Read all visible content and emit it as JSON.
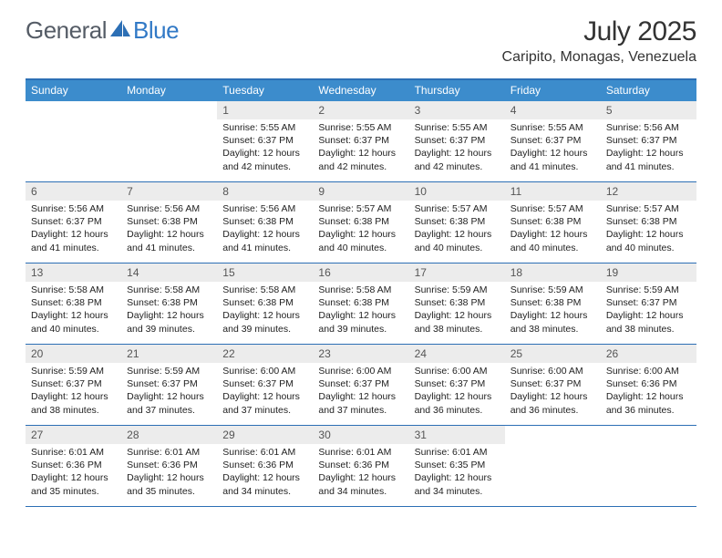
{
  "brand": {
    "text_general": "General",
    "text_blue": "Blue",
    "general_color": "#555c66",
    "blue_color": "#3179c6",
    "icon_color": "#2c6fb5"
  },
  "header": {
    "title": "July 2025",
    "location": "Caripito, Monagas, Venezuela"
  },
  "colors": {
    "header_bar": "#3c8ccc",
    "rule": "#2c6fb5",
    "daynum_bg": "#ececec",
    "text": "#222222",
    "background": "#ffffff"
  },
  "weekdays": [
    "Sunday",
    "Monday",
    "Tuesday",
    "Wednesday",
    "Thursday",
    "Friday",
    "Saturday"
  ],
  "weeks": [
    [
      {
        "n": "",
        "sr": "",
        "ss": "",
        "dl1": "",
        "dl2": ""
      },
      {
        "n": "",
        "sr": "",
        "ss": "",
        "dl1": "",
        "dl2": ""
      },
      {
        "n": "1",
        "sr": "Sunrise: 5:55 AM",
        "ss": "Sunset: 6:37 PM",
        "dl1": "Daylight: 12 hours",
        "dl2": "and 42 minutes."
      },
      {
        "n": "2",
        "sr": "Sunrise: 5:55 AM",
        "ss": "Sunset: 6:37 PM",
        "dl1": "Daylight: 12 hours",
        "dl2": "and 42 minutes."
      },
      {
        "n": "3",
        "sr": "Sunrise: 5:55 AM",
        "ss": "Sunset: 6:37 PM",
        "dl1": "Daylight: 12 hours",
        "dl2": "and 42 minutes."
      },
      {
        "n": "4",
        "sr": "Sunrise: 5:55 AM",
        "ss": "Sunset: 6:37 PM",
        "dl1": "Daylight: 12 hours",
        "dl2": "and 41 minutes."
      },
      {
        "n": "5",
        "sr": "Sunrise: 5:56 AM",
        "ss": "Sunset: 6:37 PM",
        "dl1": "Daylight: 12 hours",
        "dl2": "and 41 minutes."
      }
    ],
    [
      {
        "n": "6",
        "sr": "Sunrise: 5:56 AM",
        "ss": "Sunset: 6:37 PM",
        "dl1": "Daylight: 12 hours",
        "dl2": "and 41 minutes."
      },
      {
        "n": "7",
        "sr": "Sunrise: 5:56 AM",
        "ss": "Sunset: 6:38 PM",
        "dl1": "Daylight: 12 hours",
        "dl2": "and 41 minutes."
      },
      {
        "n": "8",
        "sr": "Sunrise: 5:56 AM",
        "ss": "Sunset: 6:38 PM",
        "dl1": "Daylight: 12 hours",
        "dl2": "and 41 minutes."
      },
      {
        "n": "9",
        "sr": "Sunrise: 5:57 AM",
        "ss": "Sunset: 6:38 PM",
        "dl1": "Daylight: 12 hours",
        "dl2": "and 40 minutes."
      },
      {
        "n": "10",
        "sr": "Sunrise: 5:57 AM",
        "ss": "Sunset: 6:38 PM",
        "dl1": "Daylight: 12 hours",
        "dl2": "and 40 minutes."
      },
      {
        "n": "11",
        "sr": "Sunrise: 5:57 AM",
        "ss": "Sunset: 6:38 PM",
        "dl1": "Daylight: 12 hours",
        "dl2": "and 40 minutes."
      },
      {
        "n": "12",
        "sr": "Sunrise: 5:57 AM",
        "ss": "Sunset: 6:38 PM",
        "dl1": "Daylight: 12 hours",
        "dl2": "and 40 minutes."
      }
    ],
    [
      {
        "n": "13",
        "sr": "Sunrise: 5:58 AM",
        "ss": "Sunset: 6:38 PM",
        "dl1": "Daylight: 12 hours",
        "dl2": "and 40 minutes."
      },
      {
        "n": "14",
        "sr": "Sunrise: 5:58 AM",
        "ss": "Sunset: 6:38 PM",
        "dl1": "Daylight: 12 hours",
        "dl2": "and 39 minutes."
      },
      {
        "n": "15",
        "sr": "Sunrise: 5:58 AM",
        "ss": "Sunset: 6:38 PM",
        "dl1": "Daylight: 12 hours",
        "dl2": "and 39 minutes."
      },
      {
        "n": "16",
        "sr": "Sunrise: 5:58 AM",
        "ss": "Sunset: 6:38 PM",
        "dl1": "Daylight: 12 hours",
        "dl2": "and 39 minutes."
      },
      {
        "n": "17",
        "sr": "Sunrise: 5:59 AM",
        "ss": "Sunset: 6:38 PM",
        "dl1": "Daylight: 12 hours",
        "dl2": "and 38 minutes."
      },
      {
        "n": "18",
        "sr": "Sunrise: 5:59 AM",
        "ss": "Sunset: 6:38 PM",
        "dl1": "Daylight: 12 hours",
        "dl2": "and 38 minutes."
      },
      {
        "n": "19",
        "sr": "Sunrise: 5:59 AM",
        "ss": "Sunset: 6:37 PM",
        "dl1": "Daylight: 12 hours",
        "dl2": "and 38 minutes."
      }
    ],
    [
      {
        "n": "20",
        "sr": "Sunrise: 5:59 AM",
        "ss": "Sunset: 6:37 PM",
        "dl1": "Daylight: 12 hours",
        "dl2": "and 38 minutes."
      },
      {
        "n": "21",
        "sr": "Sunrise: 5:59 AM",
        "ss": "Sunset: 6:37 PM",
        "dl1": "Daylight: 12 hours",
        "dl2": "and 37 minutes."
      },
      {
        "n": "22",
        "sr": "Sunrise: 6:00 AM",
        "ss": "Sunset: 6:37 PM",
        "dl1": "Daylight: 12 hours",
        "dl2": "and 37 minutes."
      },
      {
        "n": "23",
        "sr": "Sunrise: 6:00 AM",
        "ss": "Sunset: 6:37 PM",
        "dl1": "Daylight: 12 hours",
        "dl2": "and 37 minutes."
      },
      {
        "n": "24",
        "sr": "Sunrise: 6:00 AM",
        "ss": "Sunset: 6:37 PM",
        "dl1": "Daylight: 12 hours",
        "dl2": "and 36 minutes."
      },
      {
        "n": "25",
        "sr": "Sunrise: 6:00 AM",
        "ss": "Sunset: 6:37 PM",
        "dl1": "Daylight: 12 hours",
        "dl2": "and 36 minutes."
      },
      {
        "n": "26",
        "sr": "Sunrise: 6:00 AM",
        "ss": "Sunset: 6:36 PM",
        "dl1": "Daylight: 12 hours",
        "dl2": "and 36 minutes."
      }
    ],
    [
      {
        "n": "27",
        "sr": "Sunrise: 6:01 AM",
        "ss": "Sunset: 6:36 PM",
        "dl1": "Daylight: 12 hours",
        "dl2": "and 35 minutes."
      },
      {
        "n": "28",
        "sr": "Sunrise: 6:01 AM",
        "ss": "Sunset: 6:36 PM",
        "dl1": "Daylight: 12 hours",
        "dl2": "and 35 minutes."
      },
      {
        "n": "29",
        "sr": "Sunrise: 6:01 AM",
        "ss": "Sunset: 6:36 PM",
        "dl1": "Daylight: 12 hours",
        "dl2": "and 34 minutes."
      },
      {
        "n": "30",
        "sr": "Sunrise: 6:01 AM",
        "ss": "Sunset: 6:36 PM",
        "dl1": "Daylight: 12 hours",
        "dl2": "and 34 minutes."
      },
      {
        "n": "31",
        "sr": "Sunrise: 6:01 AM",
        "ss": "Sunset: 6:35 PM",
        "dl1": "Daylight: 12 hours",
        "dl2": "and 34 minutes."
      },
      {
        "n": "",
        "sr": "",
        "ss": "",
        "dl1": "",
        "dl2": ""
      },
      {
        "n": "",
        "sr": "",
        "ss": "",
        "dl1": "",
        "dl2": ""
      }
    ]
  ]
}
